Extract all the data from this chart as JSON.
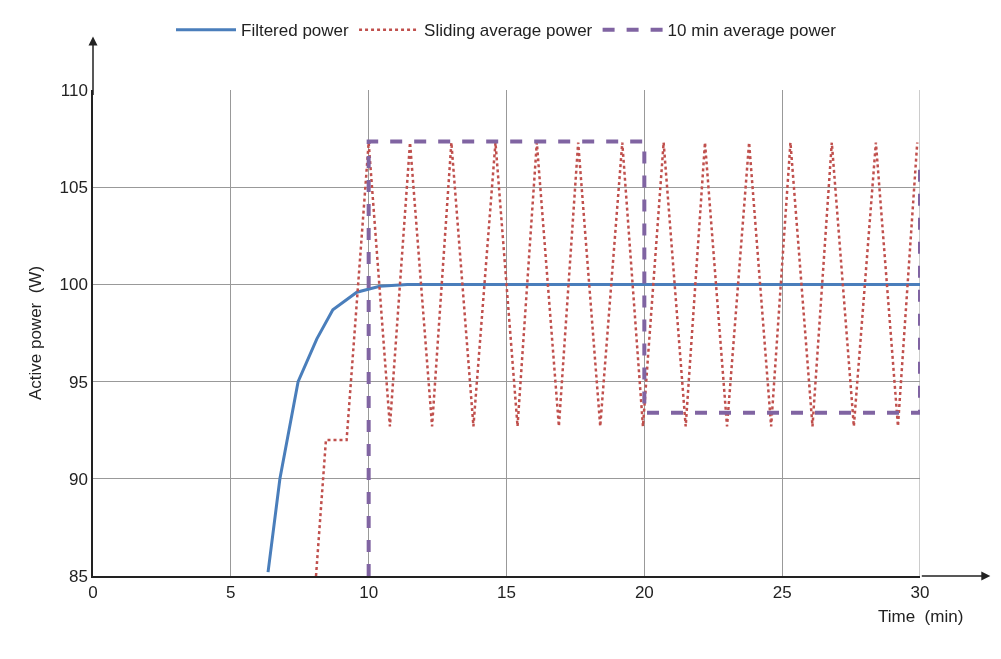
{
  "chart_data": {
    "type": "line",
    "xlabel": "Time  (min)",
    "ylabel": "Active power  (W)",
    "xlim": [
      0,
      30
    ],
    "ylim": [
      85,
      110
    ],
    "xticks": [
      0,
      5,
      10,
      15,
      20,
      25,
      30
    ],
    "yticks": [
      85,
      90,
      95,
      100,
      105,
      110
    ],
    "grid": true,
    "legend": "top",
    "series": [
      {
        "name": "Filtered power",
        "color": "#4a7ebb",
        "line_style": "solid",
        "x": [
          6.35,
          6.78,
          7.44,
          8.12,
          8.7,
          9.57,
          10.4,
          11.4,
          15,
          20,
          25,
          30
        ],
        "values": [
          85.2,
          90.0,
          95.0,
          97.2,
          98.7,
          99.6,
          99.9,
          100,
          100,
          100,
          100,
          100
        ]
      },
      {
        "name": "Sliding average power",
        "color": "#c0504d",
        "line_style": "dotted",
        "x": [
          8.09,
          8.45,
          9.2,
          10.0,
          10.77,
          11.5,
          12.3,
          13.0,
          13.8,
          14.6,
          15.4,
          16.1,
          16.9,
          17.6,
          18.4,
          19.2,
          19.95,
          20.7,
          21.5,
          22.2,
          23.0,
          23.8,
          24.6,
          25.3,
          26.1,
          26.8,
          27.6,
          28.4,
          29.2,
          29.9
        ],
        "values": [
          85,
          92.0,
          92.0,
          107.3,
          92.7,
          107.3,
          92.7,
          107.3,
          92.7,
          107.3,
          92.7,
          107.3,
          92.7,
          107.3,
          92.7,
          107.3,
          92.7,
          107.3,
          92.7,
          107.3,
          92.7,
          107.3,
          92.7,
          107.3,
          92.7,
          107.3,
          92.7,
          107.3,
          92.7,
          107.3
        ]
      },
      {
        "name": "10 min average power",
        "color": "#8064a2",
        "line_style": "dashed",
        "x": [
          10,
          10,
          20,
          20,
          30,
          30
        ],
        "values": [
          85,
          107.35,
          107.35,
          93.4,
          93.4,
          106.3
        ]
      }
    ]
  }
}
